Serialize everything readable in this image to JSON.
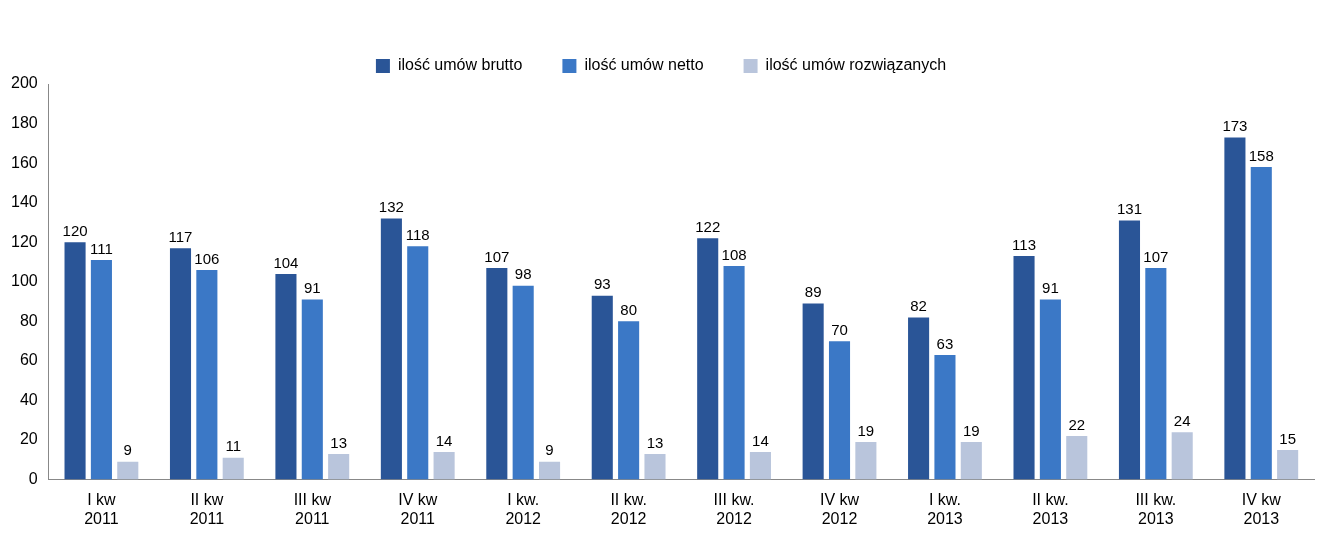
{
  "chart_data": {
    "type": "bar",
    "categories": [
      "I kw 2011",
      "II kw 2011",
      "III kw 2011",
      "IV kw 2011",
      "I kw. 2012",
      "II kw. 2012",
      "III kw. 2012",
      "IV kw 2012",
      "I kw. 2013",
      "II kw. 2013",
      "III kw. 2013",
      "IV kw 2013"
    ],
    "series": [
      {
        "name": "ilość umów brutto",
        "color": "#2a5597",
        "values": [
          120,
          117,
          104,
          132,
          107,
          93,
          122,
          89,
          82,
          113,
          131,
          173
        ]
      },
      {
        "name": "ilość umów netto",
        "color": "#3b78c6",
        "values": [
          111,
          106,
          91,
          118,
          98,
          80,
          108,
          70,
          63,
          91,
          107,
          158
        ]
      },
      {
        "name": "ilość umów rozwiązanych",
        "color": "#b9c5dc",
        "values": [
          9,
          11,
          13,
          14,
          9,
          13,
          14,
          19,
          19,
          22,
          24,
          15
        ]
      }
    ],
    "ylim": [
      0,
      200
    ],
    "yticks": [
      0,
      20,
      40,
      60,
      80,
      100,
      120,
      140,
      160,
      180,
      200
    ],
    "grid": false,
    "legend": "top",
    "data_labels": true
  }
}
